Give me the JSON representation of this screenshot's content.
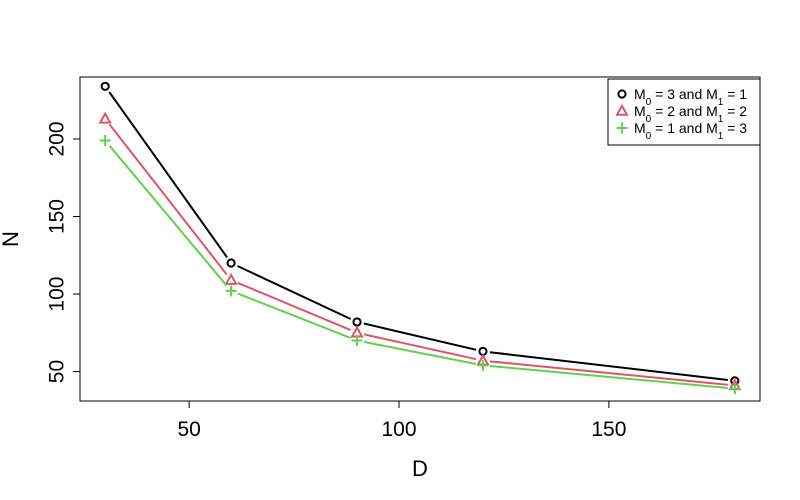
{
  "chart_data": {
    "type": "line",
    "title": "",
    "xlabel": "D",
    "ylabel": "N",
    "xlim": [
      24,
      186
    ],
    "ylim": [
      31,
      240
    ],
    "x_ticks": [
      50,
      100,
      150
    ],
    "y_ticks": [
      50,
      100,
      150,
      200
    ],
    "x": [
      30,
      60,
      90,
      120,
      180
    ],
    "legend_position": "top-right",
    "series": [
      {
        "name": "M0 = 3 and M1 = 1",
        "legend_parts": {
          "a": "M",
          "a_sub": "0",
          "b": " = 3 and M",
          "b_sub": "1",
          "c": " = 1"
        },
        "marker": "circle",
        "color": "#000000",
        "values": [
          234,
          120,
          82,
          63,
          44
        ]
      },
      {
        "name": "M0 = 2 and M1 = 2",
        "legend_parts": {
          "a": "M",
          "a_sub": "0",
          "b": " = 2 and M",
          "b_sub": "1",
          "c": " = 2"
        },
        "marker": "triangle",
        "color": "#DF536B",
        "values": [
          213,
          109,
          75,
          57,
          41
        ]
      },
      {
        "name": "M0 = 1 and M1 = 3",
        "legend_parts": {
          "a": "M",
          "a_sub": "0",
          "b": " = 1 and M",
          "b_sub": "1",
          "c": " = 3"
        },
        "marker": "plus",
        "color": "#61D04F",
        "values": [
          199,
          102,
          70,
          54,
          39
        ]
      }
    ]
  }
}
